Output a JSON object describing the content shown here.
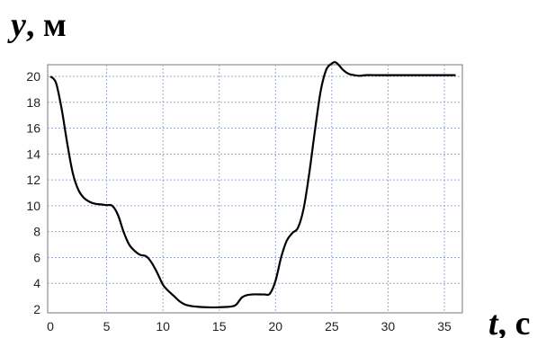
{
  "chart_data": {
    "type": "line",
    "title": "",
    "xlabel": {
      "var": "t",
      "unit": ", с"
    },
    "ylabel": {
      "var": "y",
      "unit": ", м"
    },
    "xlim": [
      0,
      36
    ],
    "ylim": [
      2,
      21
    ],
    "xticks": [
      0,
      5,
      10,
      15,
      20,
      25,
      30,
      35
    ],
    "yticks": [
      2,
      4,
      6,
      8,
      10,
      12,
      14,
      16,
      18,
      20
    ],
    "grid": true,
    "line_color": "#000000",
    "grid_color": "#9aa9d6",
    "series": [
      {
        "x": [
          0,
          0.5,
          1,
          1.5,
          2,
          2.5,
          3,
          3.5,
          4,
          4.5,
          5,
          5.5,
          6,
          6.5,
          7,
          7.5,
          8,
          8.5,
          9,
          9.5,
          10,
          10.5,
          11,
          11.5,
          12,
          12.5,
          13,
          14,
          15,
          16,
          16.5,
          17,
          17.5,
          18,
          18.5,
          19,
          19.5,
          20,
          20.5,
          21,
          21.5,
          22,
          22.5,
          23,
          23.5,
          24,
          24.5,
          25,
          25.3,
          25.6,
          26,
          26.5,
          27,
          27.5,
          28,
          29,
          30,
          31,
          32,
          33,
          34,
          35,
          36
        ],
        "y": [
          20,
          19.5,
          17.5,
          14.8,
          12.5,
          11.2,
          10.6,
          10.3,
          10.15,
          10.1,
          10.05,
          10.0,
          9.3,
          8.0,
          7.0,
          6.5,
          6.2,
          6.1,
          5.6,
          4.8,
          3.9,
          3.4,
          3.0,
          2.6,
          2.35,
          2.25,
          2.2,
          2.15,
          2.15,
          2.2,
          2.35,
          2.9,
          3.1,
          3.15,
          3.15,
          3.15,
          3.2,
          4.2,
          6.0,
          7.3,
          7.9,
          8.3,
          9.8,
          12.5,
          15.8,
          18.8,
          20.5,
          21.0,
          21.1,
          20.9,
          20.5,
          20.2,
          20.1,
          20.05,
          20.1,
          20.1,
          20.1,
          20.1,
          20.1,
          20.1,
          20.1,
          20.1,
          20.1
        ]
      }
    ]
  }
}
